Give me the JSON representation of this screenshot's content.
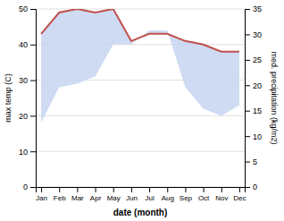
{
  "chart_data": {
    "type": "line",
    "categories": [
      "Jan",
      "Feb",
      "Mar",
      "Apr",
      "May",
      "Jun",
      "Jul",
      "Aug",
      "Sep",
      "Oct",
      "Nov",
      "Dec"
    ],
    "xlabel": "date (month)",
    "ylabel": "max temp (C)",
    "y2label": "med. precipitation (kg/m2)",
    "ylim": [
      0,
      50
    ],
    "yticks": [
      0,
      10,
      20,
      30,
      40,
      50
    ],
    "y2lim": [
      0,
      35
    ],
    "y2ticks": [
      0,
      5,
      10,
      15,
      20,
      25,
      30,
      35
    ],
    "grid": true,
    "series": [
      {
        "type": "area",
        "color": "#c5d5f0",
        "values": [
          43,
          49,
          50,
          49,
          50,
          41,
          43,
          43,
          41,
          40,
          38,
          38
        ],
        "lower": [
          18,
          28,
          29,
          31,
          40,
          40,
          44,
          44,
          28,
          22,
          20,
          23
        ]
      },
      {
        "type": "line",
        "color": "#c0504d",
        "values": [
          43,
          49,
          50,
          49,
          50,
          41,
          43,
          43,
          41,
          40,
          38,
          38
        ]
      }
    ]
  }
}
